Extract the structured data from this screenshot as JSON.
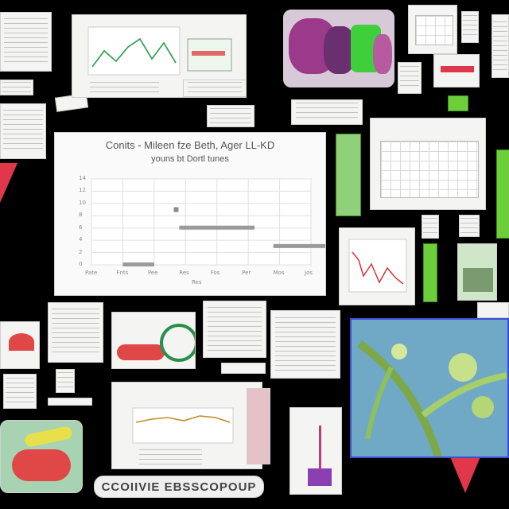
{
  "main_chart": {
    "title": "Conits - Mileen fze Beth, Ager LL-KD",
    "subtitle": "youns bt Dortl tunes",
    "y_ticks": [
      "0",
      "2",
      "4",
      "6",
      "8",
      "10",
      "12",
      "14"
    ],
    "x_ticks": [
      "Pate",
      "Fnts",
      "Pee",
      "Res",
      "Fos",
      "Per",
      "Mos",
      "Jos"
    ],
    "x_label": "Res"
  },
  "chart_data": {
    "type": "scatter",
    "title": "Conits - Mileen fze Beth, Ager LL-KD",
    "subtitle": "youns bt Dortl tunes",
    "xlabel": "Res",
    "ylabel": "",
    "categories": [
      "Pate",
      "Fnts",
      "Pee",
      "Res",
      "Fos",
      "Per",
      "Mos",
      "Jos"
    ],
    "segments": [
      {
        "x_start": 1,
        "x_end": 2,
        "y": 0
      },
      {
        "x_start": 2.8,
        "x_end": 5.2,
        "y": 6
      },
      {
        "x_start": 5.8,
        "x_end": 7.6,
        "y": 3
      }
    ],
    "points": [
      {
        "x": 2.7,
        "y": 9
      }
    ],
    "ylim": [
      0,
      14
    ],
    "grid": true
  },
  "banner": {
    "text": "CCOIIVIE EBSSCOPOUP"
  },
  "colors": {
    "background": "#000000",
    "accent_green": "#6ccf3a",
    "accent_red": "#e0384a",
    "panel": "#f4f4f2"
  }
}
